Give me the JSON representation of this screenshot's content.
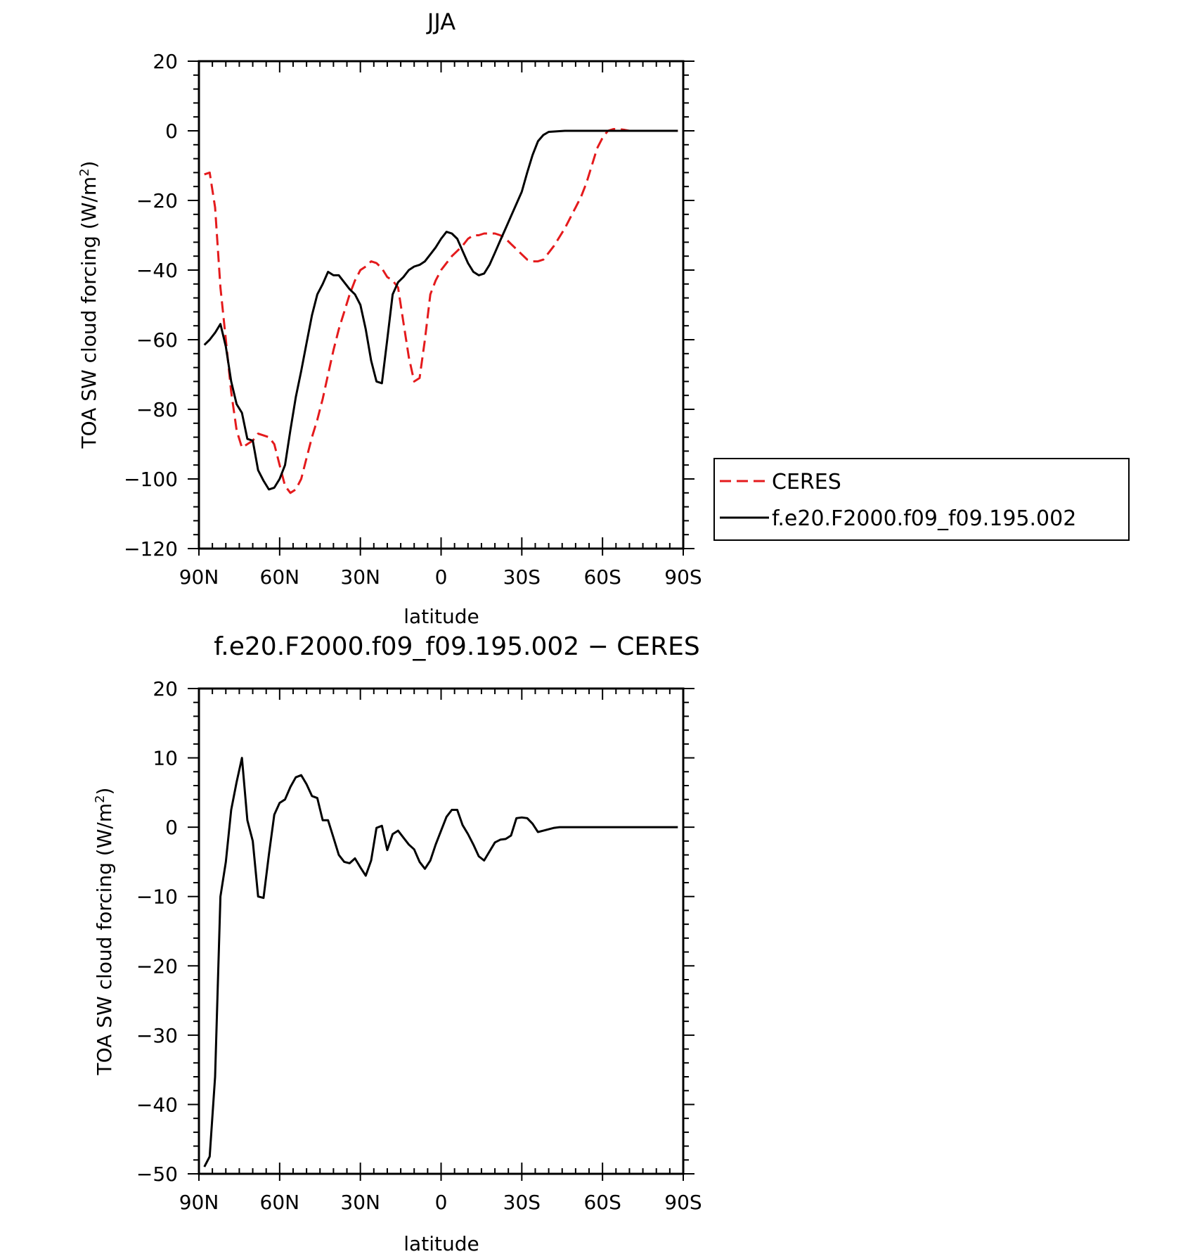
{
  "chart_data": [
    {
      "type": "line",
      "title": "JJA",
      "xlabel": "latitude",
      "ylabel": "TOA SW cloud forcing (W/m",
      "ylabel_sup": "2",
      "ylabel_close": ")",
      "xlim": [
        90,
        -90
      ],
      "ylim": [
        -120,
        20
      ],
      "x_ticks": [
        90,
        60,
        30,
        0,
        -30,
        -60,
        -90
      ],
      "x_ticklabels": [
        "90N",
        "60N",
        "30N",
        "0",
        "30S",
        "60S",
        "90S"
      ],
      "y_ticks": [
        20,
        0,
        -20,
        -40,
        -60,
        -80,
        -100,
        -120
      ],
      "y_ticklabels": [
        "20",
        "0",
        "−20",
        "−40",
        "−60",
        "−80",
        "−100",
        "−120"
      ],
      "legend": {
        "placement": "right"
      },
      "series": [
        {
          "name": "CERES",
          "color": "#e41a1c",
          "dash": "dashed",
          "x": [
            88,
            86,
            84,
            82,
            80,
            78,
            76,
            74,
            72,
            70,
            68,
            66,
            64,
            62,
            60,
            58,
            56,
            54,
            52,
            50,
            48,
            46,
            44,
            42,
            40,
            38,
            36,
            34,
            32,
            30,
            28,
            26,
            24,
            22,
            20,
            18,
            16,
            14,
            12,
            10,
            8,
            6,
            4,
            2,
            0,
            -2,
            -4,
            -6,
            -8,
            -10,
            -12,
            -14,
            -16,
            -18,
            -20,
            -22,
            -24,
            -26,
            -28,
            -30,
            -32,
            -34,
            -36,
            -38,
            -40,
            -42,
            -44,
            -46,
            -48,
            -50,
            -52,
            -54,
            -56,
            -58,
            -60,
            -62,
            -64,
            -66,
            -68,
            -70,
            -72,
            -74,
            -76,
            -78,
            -80,
            -82,
            -84,
            -86,
            -88
          ],
          "y": [
            -12.5,
            -12,
            -22,
            -45,
            -60,
            -75,
            -86,
            -91,
            -90,
            -89,
            -87,
            -87.5,
            -88,
            -90,
            -96,
            -102,
            -104,
            -103,
            -100,
            -94,
            -88,
            -83,
            -77,
            -70,
            -63,
            -57,
            -52,
            -47,
            -43,
            -40,
            -39,
            -37.5,
            -38,
            -39.5,
            -42,
            -43,
            -45,
            -55,
            -65,
            -72,
            -71,
            -60,
            -47,
            -43,
            -40,
            -38,
            -36,
            -34.5,
            -33,
            -31,
            -30,
            -30,
            -29.5,
            -29.5,
            -29.5,
            -30,
            -31,
            -32.5,
            -34,
            -35.5,
            -37,
            -37.5,
            -37.5,
            -37,
            -35,
            -33,
            -30.5,
            -28,
            -25,
            -22,
            -19,
            -15,
            -10,
            -5,
            -2,
            0,
            0.5,
            0.5,
            0.3,
            0,
            0,
            0,
            0,
            0,
            0,
            0,
            0,
            0,
            0
          ]
        },
        {
          "name": "f.e20.F2000.f09_f09.195.002",
          "color": "#000000",
          "dash": "solid",
          "x": [
            88,
            86,
            84,
            82,
            80,
            78,
            76,
            74,
            72,
            70,
            68,
            66,
            64,
            62,
            60,
            58,
            56,
            54,
            52,
            50,
            48,
            46,
            44,
            42,
            40,
            38,
            36,
            34,
            32,
            30,
            28,
            26,
            24,
            22,
            20,
            18,
            16,
            14,
            12,
            10,
            8,
            6,
            4,
            2,
            0,
            -2,
            -4,
            -6,
            -8,
            -10,
            -12,
            -14,
            -16,
            -18,
            -20,
            -22,
            -24,
            -26,
            -28,
            -30,
            -32,
            -34,
            -36,
            -38,
            -40,
            -42,
            -44,
            -46,
            -48,
            -50,
            -52,
            -54,
            -56,
            -58,
            -60,
            -62,
            -64,
            -66,
            -68,
            -70,
            -72,
            -74,
            -76,
            -78,
            -80,
            -82,
            -84,
            -86,
            -88
          ],
          "y": [
            -61.5,
            -60,
            -58,
            -55.5,
            -62,
            -72,
            -78.5,
            -81,
            -88.5,
            -89,
            -97.5,
            -100.5,
            -103,
            -102.5,
            -100,
            -96,
            -86,
            -76.5,
            -69,
            -61,
            -53,
            -47,
            -44,
            -40.5,
            -41.5,
            -41.5,
            -43.5,
            -45.5,
            -47,
            -50,
            -57,
            -66,
            -72,
            -72.5,
            -60,
            -47,
            -43.5,
            -42,
            -40,
            -39,
            -38.5,
            -37.5,
            -35.5,
            -33.5,
            -31,
            -29,
            -29.5,
            -31,
            -34.5,
            -38,
            -40.5,
            -41.5,
            -41,
            -38.5,
            -35,
            -31.5,
            -28,
            -24.5,
            -21,
            -17.5,
            -12,
            -7,
            -3,
            -1.2,
            -0.3,
            -0.2,
            -0.1,
            0,
            0,
            0,
            0,
            0,
            0,
            0,
            0,
            0,
            0,
            0,
            0,
            0,
            0,
            0,
            0,
            0,
            0,
            0,
            0,
            0,
            0
          ]
        }
      ]
    },
    {
      "type": "line",
      "title": "f.e20.F2000.f09_f09.195.002 − CERES",
      "xlabel": "latitude",
      "ylabel": "TOA SW cloud forcing (W/m",
      "ylabel_sup": "2",
      "ylabel_close": ")",
      "xlim": [
        90,
        -90
      ],
      "ylim": [
        -50,
        20
      ],
      "x_ticks": [
        90,
        60,
        30,
        0,
        -30,
        -60,
        -90
      ],
      "x_ticklabels": [
        "90N",
        "60N",
        "30N",
        "0",
        "30S",
        "60S",
        "90S"
      ],
      "y_ticks": [
        20,
        10,
        0,
        -10,
        -20,
        -30,
        -40,
        -50
      ],
      "y_ticklabels": [
        "20",
        "10",
        "0",
        "−10",
        "−20",
        "−30",
        "−40",
        "−50"
      ],
      "series": [
        {
          "color": "#000000",
          "dash": "solid",
          "x": [
            88,
            86,
            84,
            82,
            80,
            78,
            76,
            74,
            72,
            70,
            68,
            66,
            64,
            62,
            60,
            58,
            56,
            54,
            52,
            50,
            48,
            46,
            44,
            42,
            40,
            38,
            36,
            34,
            32,
            30,
            28,
            26,
            24,
            22,
            20,
            18,
            16,
            14,
            12,
            10,
            8,
            6,
            4,
            2,
            0,
            -2,
            -4,
            -6,
            -8,
            -10,
            -12,
            -14,
            -16,
            -18,
            -20,
            -22,
            -24,
            -26,
            -28,
            -30,
            -32,
            -34,
            -36,
            -38,
            -40,
            -42,
            -44,
            -46,
            -48,
            -50,
            -52,
            -54,
            -56,
            -58,
            -60,
            -62,
            -64,
            -66,
            -68,
            -70,
            -72,
            -74,
            -76,
            -78,
            -80,
            -82,
            -84,
            -86,
            -88
          ],
          "y": [
            -49,
            -47.5,
            -36,
            -10,
            -5,
            2.5,
            6.5,
            10,
            1,
            -2,
            -10,
            -10.2,
            -4,
            1.8,
            3.5,
            4,
            5.8,
            7.2,
            7.5,
            6.2,
            4.5,
            4.2,
            1,
            1,
            -1.5,
            -4,
            -5,
            -5.2,
            -4.5,
            -5.8,
            -7,
            -4.8,
            -0.1,
            0.2,
            -3.3,
            -1,
            -0.5,
            -1.5,
            -2.5,
            -3.2,
            -5,
            -6,
            -4.8,
            -2.5,
            -0.5,
            1.5,
            2.5,
            2.5,
            0.3,
            -1,
            -2.5,
            -4.2,
            -4.8,
            -3.5,
            -2.2,
            -1.8,
            -1.7,
            -1.2,
            1.3,
            1.4,
            1.3,
            0.5,
            -0.7,
            -0.5,
            -0.3,
            -0.1,
            0,
            0,
            0,
            0,
            0,
            0,
            0,
            0,
            0,
            0,
            0,
            0,
            0,
            0,
            0,
            0,
            0,
            0,
            0,
            0,
            0,
            0,
            0
          ]
        }
      ]
    }
  ]
}
